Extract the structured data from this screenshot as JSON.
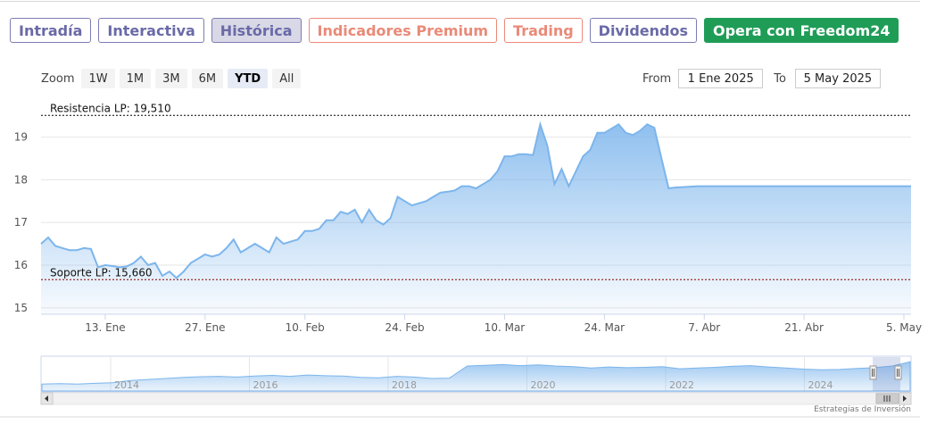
{
  "tabs": [
    {
      "label": "Intradía",
      "style": "normal"
    },
    {
      "label": "Interactiva",
      "style": "normal"
    },
    {
      "label": "Histórica",
      "style": "active"
    },
    {
      "label": "Indicadores Premium",
      "style": "orange"
    },
    {
      "label": "Trading",
      "style": "orange"
    },
    {
      "label": "Dividendos",
      "style": "normal"
    },
    {
      "label": "Opera con Freedom24",
      "style": "green"
    }
  ],
  "zoom": {
    "label": "Zoom",
    "buttons": [
      "1W",
      "1M",
      "3M",
      "6M",
      "YTD",
      "All"
    ],
    "selected": "YTD"
  },
  "range": {
    "from_label": "From",
    "from_value": "1 Ene 2025",
    "to_label": "To",
    "to_value": "5 May 2025"
  },
  "credit": "Estrategias de Inversión",
  "colors": {
    "line": "#7cb5ec",
    "resistance": "#000000",
    "support": "#8b0000",
    "accent_green": "#1f9d57"
  },
  "chart_data": {
    "type": "area",
    "y_ticks": [
      "15",
      "16",
      "17",
      "18",
      "19"
    ],
    "ylim": [
      14.85,
      19.85
    ],
    "x_ticks": [
      "13. Ene",
      "27. Ene",
      "10. Feb",
      "24. Feb",
      "10. Mar",
      "24. Mar",
      "7. Abr",
      "21. Abr",
      "5. May"
    ],
    "x_tick_days": [
      12,
      26,
      40,
      54,
      68,
      82,
      96,
      110,
      124
    ],
    "xlim": [
      3,
      125
    ],
    "series": [
      {
        "x": [
          3,
          4,
          5,
          6,
          7,
          8,
          9,
          10,
          11,
          12,
          13,
          14,
          15,
          16,
          17,
          18,
          19,
          20,
          21,
          22,
          23,
          24,
          25,
          26,
          27,
          28,
          29,
          30,
          31,
          32,
          33,
          34,
          35,
          36,
          37,
          38,
          39,
          40,
          41,
          42,
          43,
          44,
          45,
          46,
          47,
          48,
          49,
          50,
          51,
          52,
          53,
          54,
          55,
          56,
          57,
          58,
          59,
          60,
          61,
          62,
          63,
          64,
          65,
          66,
          67,
          68,
          69,
          70,
          71,
          72,
          73,
          74,
          75,
          76,
          77,
          78,
          79,
          80,
          81,
          82,
          83,
          84,
          85,
          86,
          87,
          88,
          89,
          90,
          91,
          92,
          93,
          94,
          95,
          96,
          97,
          98,
          99,
          100,
          101,
          102,
          103,
          104,
          105,
          106,
          107,
          108,
          109,
          110,
          111,
          112,
          113,
          114,
          115,
          116,
          117,
          118,
          119,
          120,
          121,
          122,
          123,
          124,
          125
        ],
        "values": [
          16.5,
          16.65,
          16.45,
          16.4,
          16.35,
          16.35,
          16.4,
          16.38,
          15.95,
          16.0,
          15.98,
          15.95,
          15.97,
          16.05,
          16.2,
          16.0,
          16.05,
          15.75,
          15.85,
          15.7,
          15.85,
          16.05,
          16.15,
          16.25,
          16.2,
          16.25,
          16.4,
          16.6,
          16.3,
          16.4,
          16.5,
          16.4,
          16.3,
          16.65,
          16.5,
          16.55,
          16.6,
          16.8,
          16.8,
          16.85,
          17.05,
          17.05,
          17.25,
          17.2,
          17.3,
          17.0,
          17.3,
          17.05,
          16.95,
          17.1,
          17.6,
          17.5,
          17.4,
          17.45,
          17.5,
          17.6,
          17.7,
          17.72,
          17.75,
          17.85,
          17.85,
          17.8,
          17.9,
          18.0,
          18.2,
          18.55,
          18.55,
          18.6,
          18.6,
          18.58,
          19.3,
          18.8,
          17.9,
          18.25,
          17.85,
          18.2,
          18.55,
          18.7,
          19.1,
          19.1,
          19.2,
          19.3,
          19.1,
          19.05,
          19.15,
          19.3,
          19.22,
          18.5,
          17.8,
          17.82,
          17.83,
          17.84,
          17.85,
          17.85,
          17.85,
          17.85,
          17.85,
          17.85,
          17.85,
          17.85,
          17.85,
          17.85,
          17.85,
          17.85,
          17.85,
          17.85,
          17.85,
          17.85,
          17.85,
          17.85,
          17.85,
          17.85,
          17.85,
          17.85,
          17.85,
          17.85,
          17.85,
          17.85,
          17.85,
          17.85,
          17.85,
          17.85,
          17.85
        ]
      }
    ],
    "annotations": [
      {
        "label": "Resistencia LP: 19,510",
        "value": 19.51
      },
      {
        "label": "Soporte LP: 15,660",
        "value": 15.66
      }
    ],
    "grid": true,
    "navigator": {
      "year_labels": [
        "2014",
        "2016",
        "2018",
        "2020",
        "2022",
        "2024"
      ],
      "values": [
        12.0,
        12.1,
        12.0,
        12.2,
        12.4,
        13.0,
        13.3,
        13.6,
        13.9,
        14.1,
        14.2,
        14.0,
        14.3,
        14.5,
        14.2,
        14.6,
        14.4,
        14.3,
        13.9,
        13.8,
        14.2,
        14.0,
        13.6,
        13.7,
        17.2,
        17.4,
        17.6,
        17.3,
        17.5,
        17.2,
        17.0,
        16.6,
        16.9,
        16.7,
        16.8,
        17.0,
        16.4,
        16.6,
        16.8,
        17.1,
        17.3,
        16.9,
        16.6,
        16.3,
        16.1,
        16.2,
        16.5,
        16.7,
        17.2,
        18.4
      ],
      "ylim": [
        10,
        19.5
      ]
    }
  }
}
